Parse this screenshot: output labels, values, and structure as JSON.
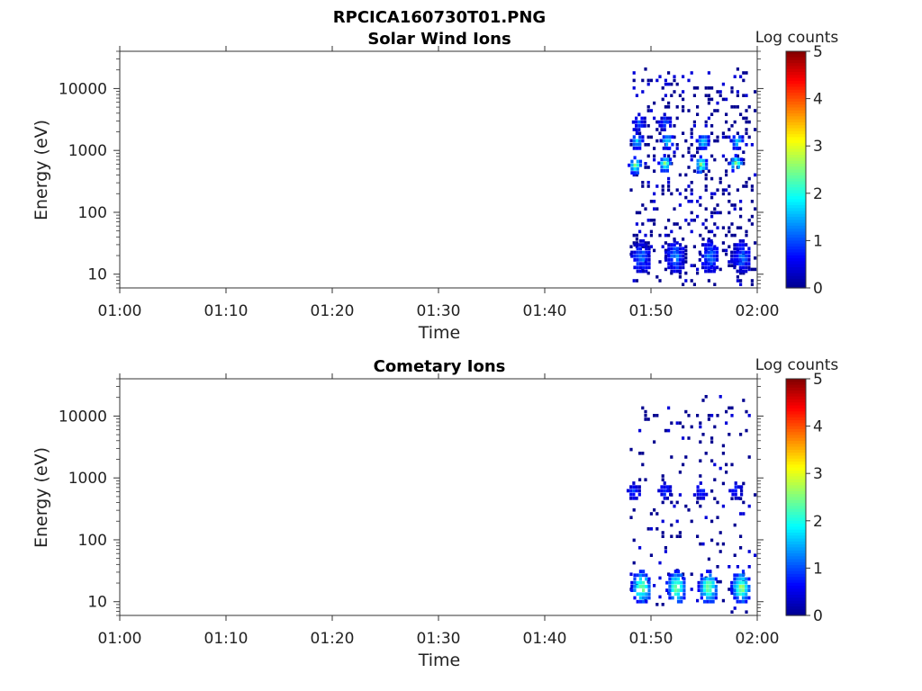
{
  "figure_title": "RPCICA160730T01.PNG",
  "colorbar_label": "Log counts",
  "colorbar_ticks": [
    "0",
    "1",
    "2",
    "3",
    "4",
    "5"
  ],
  "colormap": [
    "#00008f",
    "#0000ff",
    "#0080ff",
    "#00ffff",
    "#80ff80",
    "#ffff00",
    "#ff8000",
    "#ff0000",
    "#800000"
  ],
  "chart_data": [
    {
      "type": "heatmap",
      "title": "Solar Wind Ions",
      "xlabel": "Time",
      "ylabel": "Energy (eV)",
      "x_ticks": [
        "01:00",
        "01:10",
        "01:20",
        "01:30",
        "01:40",
        "01:50",
        "02:00"
      ],
      "x_range": [
        "01:00",
        "02:00"
      ],
      "y_ticks": [
        "10",
        "100",
        "1000",
        "10000"
      ],
      "y_scale": "log",
      "ylim": [
        6,
        40000
      ],
      "color_range": [
        0,
        5
      ],
      "data_start": "01:48",
      "blobs": [
        {
          "t": "01:48.4",
          "e": 600,
          "log_counts": 2.6
        },
        {
          "t": "01:48.6",
          "e": 1500,
          "log_counts": 1.8
        },
        {
          "t": "01:48.8",
          "e": 3000,
          "log_counts": 1.0
        },
        {
          "t": "01:51.2",
          "e": 650,
          "log_counts": 2.7
        },
        {
          "t": "01:51.4",
          "e": 1500,
          "log_counts": 1.9
        },
        {
          "t": "01:51.2",
          "e": 3000,
          "log_counts": 1.0
        },
        {
          "t": "01:54.6",
          "e": 620,
          "log_counts": 2.6
        },
        {
          "t": "01:54.8",
          "e": 1500,
          "log_counts": 1.9
        },
        {
          "t": "01:57.9",
          "e": 650,
          "log_counts": 2.7
        },
        {
          "t": "01:58.0",
          "e": 1500,
          "log_counts": 2.0
        },
        {
          "t": "01:49.0",
          "e": 20,
          "log_counts": 1.3
        },
        {
          "t": "01:52.2",
          "e": 20,
          "log_counts": 1.4
        },
        {
          "t": "01:55.4",
          "e": 20,
          "log_counts": 1.3
        },
        {
          "t": "01:58.4",
          "e": 20,
          "log_counts": 1.2
        }
      ]
    },
    {
      "type": "heatmap",
      "title": "Cometary Ions",
      "xlabel": "Time",
      "ylabel": "Energy (eV)",
      "x_ticks": [
        "01:00",
        "01:10",
        "01:20",
        "01:30",
        "01:40",
        "01:50",
        "02:00"
      ],
      "x_range": [
        "01:00",
        "02:00"
      ],
      "y_ticks": [
        "10",
        "100",
        "1000",
        "10000"
      ],
      "y_scale": "log",
      "ylim": [
        6,
        40000
      ],
      "color_range": [
        0,
        5
      ],
      "data_start": "01:48",
      "blobs": [
        {
          "t": "01:48.3",
          "e": 650,
          "log_counts": 1.0
        },
        {
          "t": "01:51.2",
          "e": 650,
          "log_counts": 1.0
        },
        {
          "t": "01:54.6",
          "e": 650,
          "log_counts": 0.9
        },
        {
          "t": "01:57.9",
          "e": 650,
          "log_counts": 1.0
        },
        {
          "t": "01:49.0",
          "e": 18,
          "log_counts": 2.8
        },
        {
          "t": "01:52.3",
          "e": 18,
          "log_counts": 2.8
        },
        {
          "t": "01:55.3",
          "e": 18,
          "log_counts": 2.7
        },
        {
          "t": "01:58.4",
          "e": 18,
          "log_counts": 2.8
        }
      ]
    }
  ]
}
